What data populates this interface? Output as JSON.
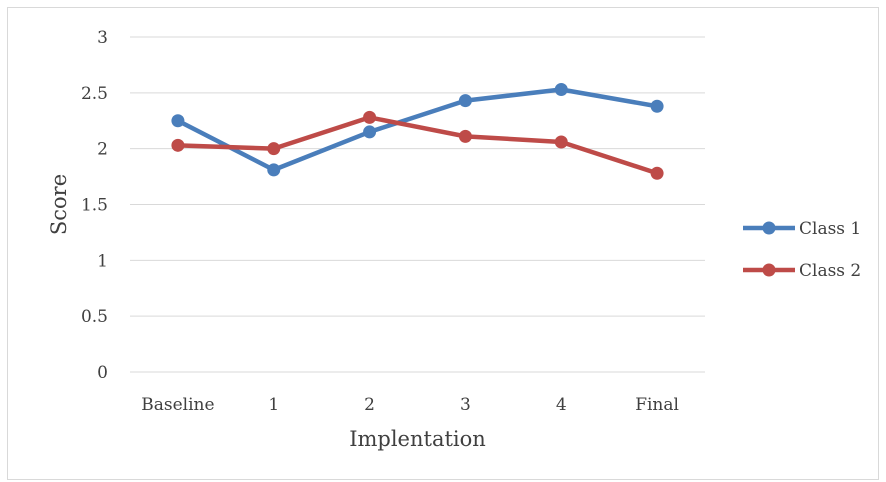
{
  "chart_data": {
    "type": "line",
    "title": "",
    "xlabel": "Implentation",
    "ylabel": "Score",
    "categories": [
      "Baseline",
      "1",
      "2",
      "3",
      "4",
      "Final"
    ],
    "y_ticks": [
      "0",
      "0.5",
      "1",
      "1.5",
      "2",
      "2.5",
      "3"
    ],
    "ylim": [
      0,
      3
    ],
    "grid": "horizontal",
    "legend_position": "right",
    "series": [
      {
        "name": "Class 1",
        "color": "#4a7ebb",
        "values": [
          2.25,
          1.81,
          2.15,
          2.43,
          2.53,
          2.38
        ]
      },
      {
        "name": "Class 2",
        "color": "#be4b48",
        "values": [
          2.03,
          2.0,
          2.28,
          2.11,
          2.06,
          1.78
        ]
      }
    ]
  }
}
